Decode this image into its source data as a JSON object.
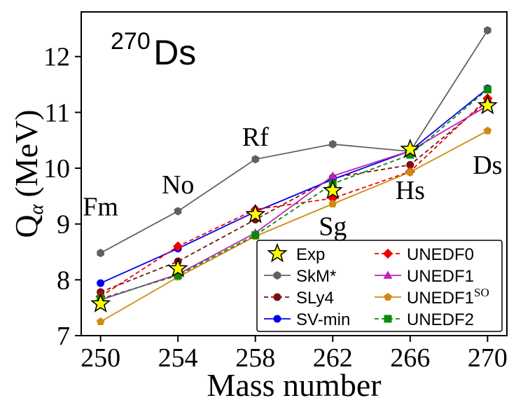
{
  "chart_data": {
    "type": "line",
    "nucleus_label": {
      "mass": "270",
      "symbol": "Ds"
    },
    "xlabel": "Mass number",
    "ylabel": {
      "main": "Q",
      "sub": "α",
      "unit": "(MeV)"
    },
    "xlim": [
      249,
      271
    ],
    "ylim": [
      7,
      12.8
    ],
    "x": [
      250,
      254,
      258,
      262,
      266,
      270
    ],
    "xticks": [
      "250",
      "254",
      "258",
      "262",
      "266",
      "270"
    ],
    "yticks": [
      "7",
      "8",
      "9",
      "10",
      "11",
      "12"
    ],
    "grid": false,
    "legend_position": "bottom-right",
    "element_annotations": [
      {
        "text": "Fm",
        "x": 250,
        "y": 9.15
      },
      {
        "text": "No",
        "x": 254,
        "y": 9.55
      },
      {
        "text": "Rf",
        "x": 258,
        "y": 10.4
      },
      {
        "text": "Sg",
        "x": 262,
        "y": 8.8
      },
      {
        "text": "Hs",
        "x": 266,
        "y": 9.45
      },
      {
        "text": "Ds",
        "x": 270,
        "y": 9.9
      }
    ],
    "series": [
      {
        "name": "Exp",
        "name_sup": "",
        "values": [
          7.57,
          8.2,
          9.17,
          9.6,
          10.34,
          11.12
        ],
        "color": "#000000",
        "fill": "#ffff00",
        "marker": "star",
        "dash": "none",
        "no_line": true
      },
      {
        "name": "SkM*",
        "name_sup": "",
        "values": [
          8.48,
          9.23,
          10.16,
          10.43,
          10.3,
          12.47
        ],
        "color": "#606060",
        "fill": "#606060",
        "marker": "hexagon",
        "dash": "none"
      },
      {
        "name": "SLy4",
        "name_sup": "",
        "values": [
          7.78,
          8.33,
          9.08,
          9.83,
          10.06,
          11.2
        ],
        "color": "#7a0f0f",
        "fill": "#7a0f0f",
        "marker": "circle",
        "dash": "dashed"
      },
      {
        "name": "SV-min",
        "name_sup": "",
        "values": [
          7.94,
          8.56,
          9.22,
          9.8,
          10.31,
          11.43
        ],
        "color": "#0000ee",
        "fill": "#0000ee",
        "marker": "circle",
        "dash": "none"
      },
      {
        "name": "UNEDF0",
        "name_sup": "",
        "values": [
          7.7,
          8.6,
          9.26,
          9.46,
          9.94,
          11.25
        ],
        "color": "#ee0000",
        "fill": "#ee0000",
        "marker": "diamond",
        "dash": "dashed"
      },
      {
        "name": "UNEDF1",
        "name_sup": "",
        "values": [
          7.64,
          8.1,
          8.84,
          9.86,
          10.31,
          11.12
        ],
        "color": "#bb22bb",
        "fill": "#bb22bb",
        "marker": "triangle",
        "dash": "none"
      },
      {
        "name": "UNEDF1",
        "name_sup": "SO",
        "values": [
          7.25,
          8.05,
          8.78,
          9.36,
          9.93,
          10.67
        ],
        "color": "#d08a10",
        "fill": "#d08a10",
        "marker": "pentagon",
        "dash": "none"
      },
      {
        "name": "UNEDF2",
        "name_sup": "",
        "values": [
          7.66,
          8.08,
          8.8,
          9.72,
          10.24,
          11.41
        ],
        "color": "#0a8a0a",
        "fill": "#0a8a0a",
        "marker": "square",
        "dash": "dashed"
      }
    ]
  }
}
